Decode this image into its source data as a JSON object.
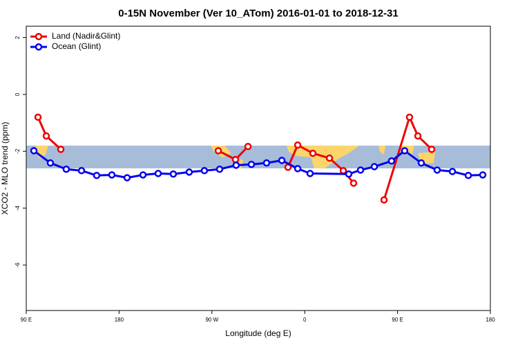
{
  "chart_data": {
    "type": "line",
    "title": "0-15N November (Ver 10_ATom)   2016-01-01 to 2018-12-31",
    "xlabel": "Longitude (deg E)",
    "ylabel": "XCO2 - MLO trend (ppm)",
    "xlim": [
      90,
      540
    ],
    "xticks": [
      {
        "value": 90,
        "label": "90 E"
      },
      {
        "value": 180,
        "label": "180"
      },
      {
        "value": 270,
        "label": "90 W"
      },
      {
        "value": 360,
        "label": "0"
      },
      {
        "value": 450,
        "label": "90 E"
      },
      {
        "value": 540,
        "label": "180"
      }
    ],
    "ylim": [
      -7.6,
      2.4
    ],
    "yticks": [
      -6,
      -4,
      -2,
      0,
      2
    ],
    "legend": "top-left",
    "series": [
      {
        "name": "Land (Nadir&Glint)",
        "color": "#ee0000",
        "x": [
          101.4,
          109.4,
          123.5,
          null,
          276.2,
          292.9,
          305.0,
          null,
          343.8,
          353.2,
          367.9,
          384.0,
          397.4,
          407.4,
          null,
          436.9,
          461.6,
          469.7,
          483.1
        ],
        "values": [
          -0.8,
          -1.46,
          -1.93,
          null,
          -1.98,
          -2.29,
          -1.83,
          null,
          -2.56,
          -1.78,
          -2.07,
          -2.24,
          -2.68,
          -3.12,
          null,
          -3.71,
          -0.8,
          -1.46,
          -1.93
        ]
      },
      {
        "name": "Ocean (Glint)",
        "color": "#0000ee",
        "x": [
          97.4,
          113.4,
          128.8,
          143.6,
          158.3,
          173.0,
          187.8,
          203.2,
          217.9,
          232.6,
          248.0,
          262.7,
          277.5,
          293.5,
          308.3,
          323.0,
          337.8,
          353.2,
          365.2,
          402.7,
          414.1,
          427.5,
          444.2,
          456.9,
          473.0,
          488.4,
          503.2,
          518.6,
          532.6
        ],
        "values": [
          -1.98,
          -2.41,
          -2.63,
          -2.68,
          -2.85,
          -2.83,
          -2.93,
          -2.83,
          -2.78,
          -2.8,
          -2.73,
          -2.68,
          -2.63,
          -2.49,
          -2.46,
          -2.41,
          -2.32,
          -2.61,
          -2.78,
          -2.8,
          -2.66,
          -2.54,
          -2.34,
          -1.98,
          -2.41,
          -2.66,
          -2.71,
          -2.85,
          -2.83
        ]
      }
    ]
  }
}
